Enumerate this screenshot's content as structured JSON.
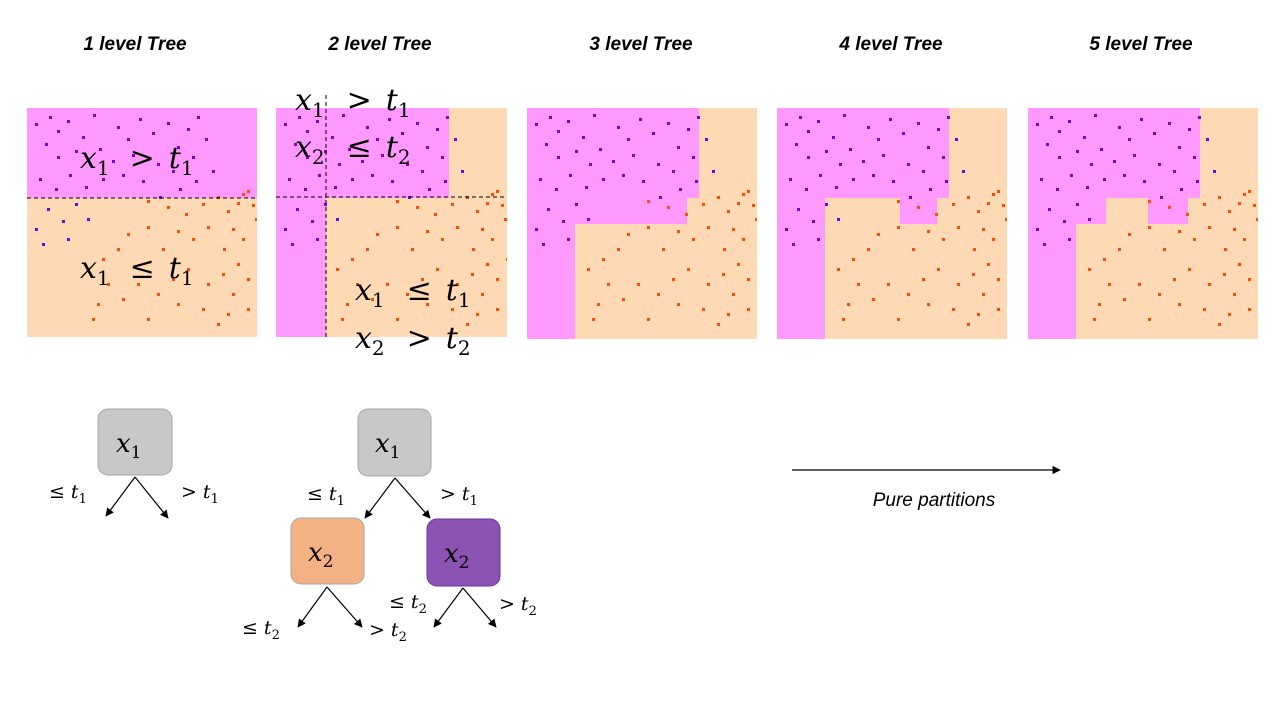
{
  "panel_titles": [
    "1 level Tree",
    "2 level Tree",
    "3 level Tree",
    "4 level Tree",
    "5 level Tree"
  ],
  "split_labels": {
    "p1_upper": {
      "var": "x",
      "sub": "1",
      "op": ">",
      "thr": "t",
      "tsub": "1"
    },
    "p1_lower": {
      "var": "x",
      "sub": "1",
      "op": "≤",
      "thr": "t",
      "tsub": "1"
    },
    "p2_top_line1": {
      "var": "x",
      "sub": "1",
      "op": ">",
      "thr": "t",
      "tsub": "1"
    },
    "p2_top_line2": {
      "var": "x",
      "sub": "2",
      "op": "≤",
      "thr": "t",
      "tsub": "2"
    },
    "p2_bot_line1": {
      "var": "x",
      "sub": "1",
      "op": "≤",
      "thr": "t",
      "tsub": "1"
    },
    "p2_bot_line2": {
      "var": "x",
      "sub": "2",
      "op": ">",
      "thr": "t",
      "tsub": "2"
    }
  },
  "tree1": {
    "root": {
      "var": "x",
      "sub": "1"
    },
    "left_edge": {
      "op": "≤",
      "thr": "t",
      "tsub": "1"
    },
    "right_edge": {
      "op": ">",
      "thr": "t",
      "tsub": "1"
    }
  },
  "tree2": {
    "root": {
      "var": "x",
      "sub": "1"
    },
    "left_child": {
      "var": "x",
      "sub": "2"
    },
    "right_child": {
      "var": "x",
      "sub": "2"
    },
    "root_left_edge": {
      "op": "≤",
      "thr": "t",
      "tsub": "1"
    },
    "root_right_edge": {
      "op": ">",
      "thr": "t",
      "tsub": "1"
    },
    "left_child_left_edge": {
      "op": "≤",
      "thr": "t",
      "tsub": "2"
    },
    "left_child_right_edge": {
      "op": ">",
      "thr": "t",
      "tsub": "2"
    },
    "right_child_left_edge": {
      "op": "≤",
      "thr": "t",
      "tsub": "2"
    },
    "right_child_right_edge": {
      "op": ">",
      "thr": "t",
      "tsub": "2"
    }
  },
  "caption": "Pure partitions",
  "colors": {
    "region_a": "#ff99ff",
    "region_b": "#ffd9b3",
    "points_a": "#8000cc",
    "points_b": "#ff4d00",
    "node_root": "#c8c8c8",
    "node_left": "#f4b183",
    "node_right": "#8c52b4"
  }
}
